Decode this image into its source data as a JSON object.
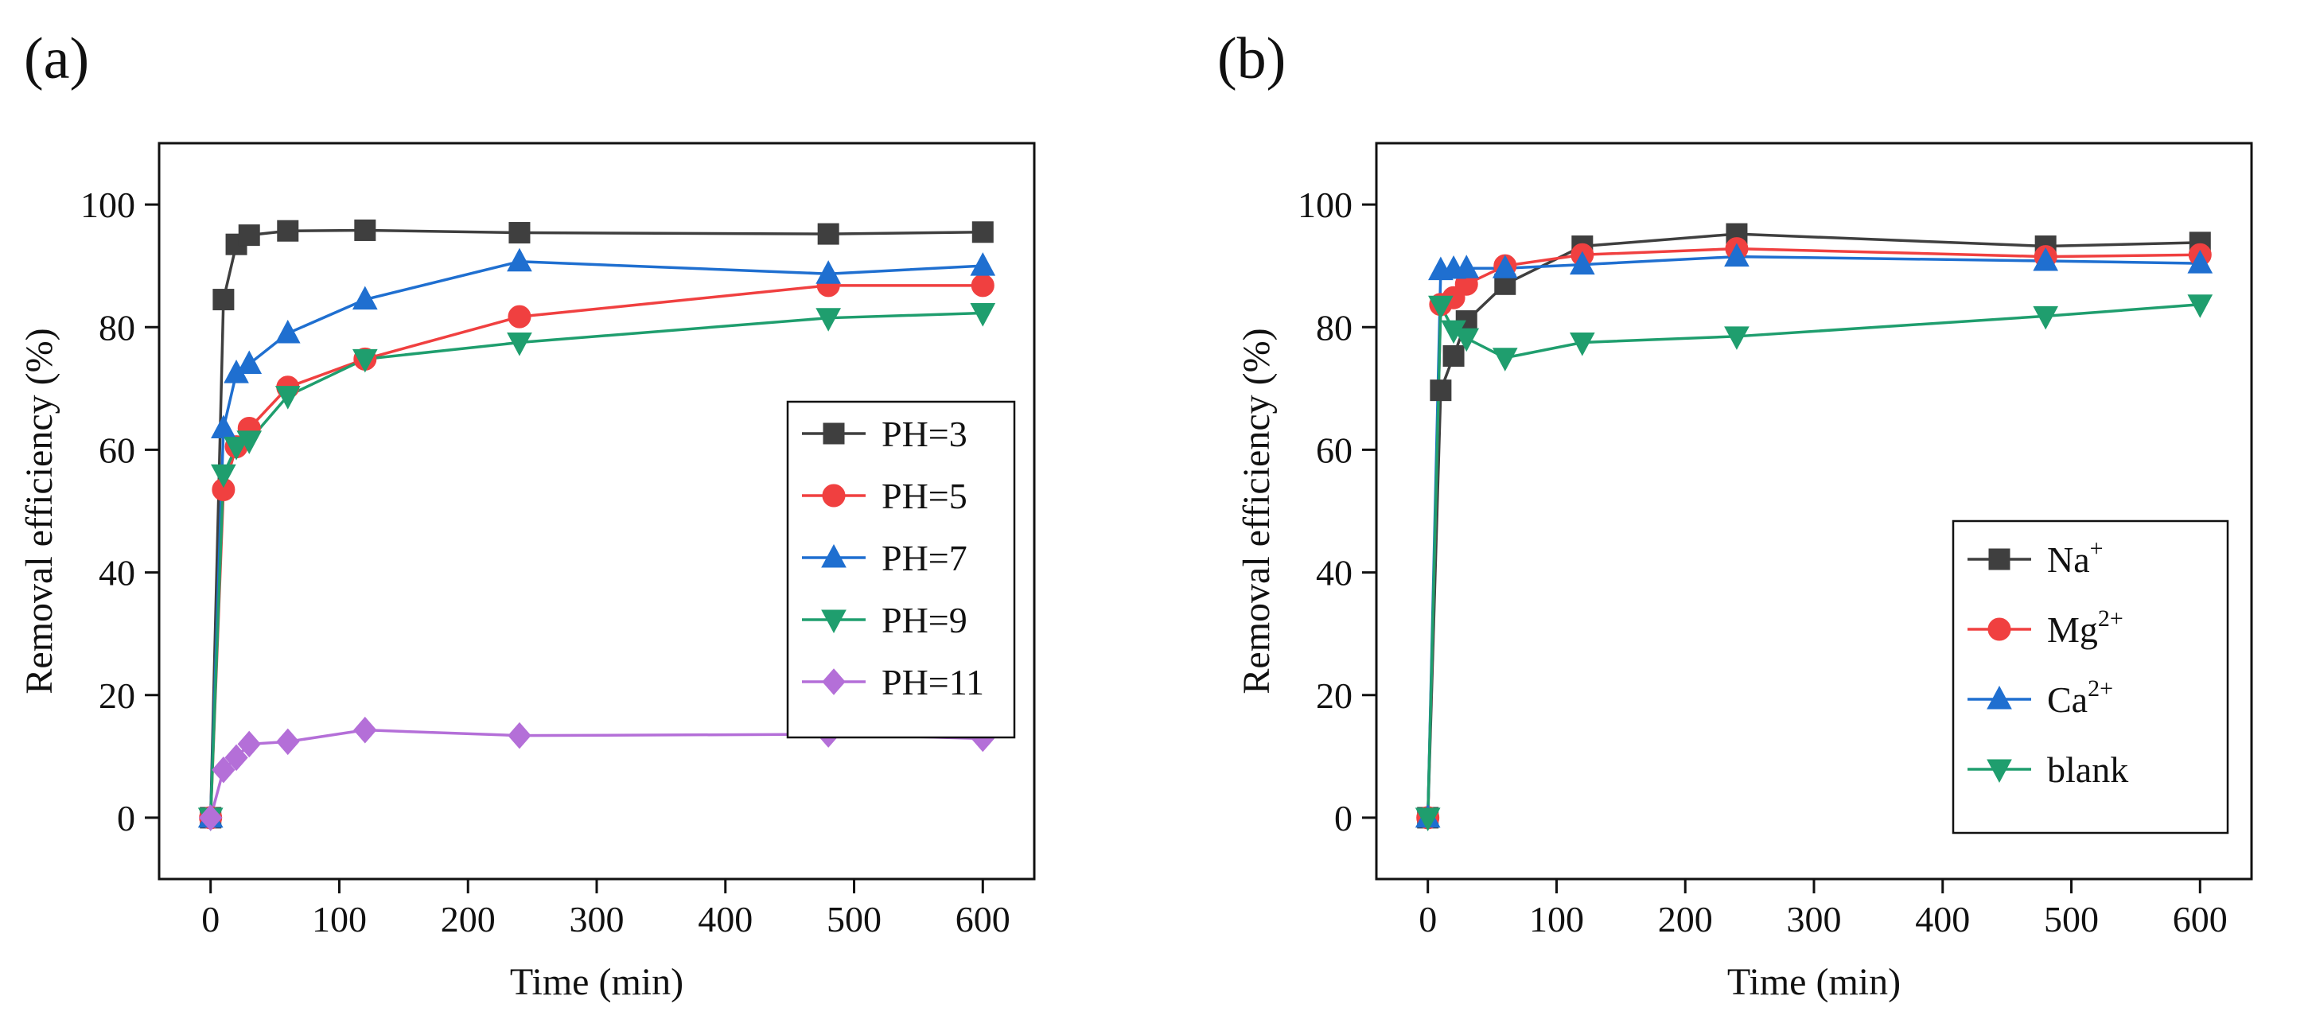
{
  "chart_data": [
    {
      "panel_label": "(a)",
      "type": "line",
      "xlabel": "Time (min)",
      "ylabel": "Removal efficiency (%)",
      "xlim": [
        -40,
        640
      ],
      "ylim": [
        -10,
        110
      ],
      "xticks": [
        0,
        100,
        200,
        300,
        400,
        500,
        600
      ],
      "xtick_labels": [
        "0",
        "100",
        "200",
        "300",
        "400",
        "500",
        "600"
      ],
      "yticks": [
        0,
        20,
        40,
        60,
        80,
        100
      ],
      "ytick_labels": [
        "0",
        "20",
        "40",
        "60",
        "80",
        "100"
      ],
      "grid": false,
      "legend_position": "center-right",
      "x": [
        0,
        10,
        20,
        30,
        60,
        120,
        240,
        480,
        600
      ],
      "series": [
        {
          "name": "PH=3",
          "label_main": "PH=3",
          "label_sup": "",
          "color": "#3f3f3f",
          "marker": "square",
          "values": [
            0,
            84.5,
            93.5,
            95,
            95.7,
            95.8,
            95.4,
            95.2,
            95.5
          ]
        },
        {
          "name": "PH=5",
          "label_main": "PH=5",
          "label_sup": "",
          "color": "#f04040",
          "marker": "circle",
          "values": [
            0,
            53.5,
            60.5,
            63.5,
            70.2,
            74.8,
            81.7,
            86.8,
            86.8
          ]
        },
        {
          "name": "PH=7",
          "label_main": "PH=7",
          "label_sup": "",
          "color": "#1f6fd0",
          "marker": "triangle-up",
          "values": [
            0,
            63.5,
            72.5,
            74,
            79,
            84.5,
            90.7,
            88.7,
            90
          ]
        },
        {
          "name": "PH=9",
          "label_main": "PH=9",
          "label_sup": "",
          "color": "#1f9e6e",
          "marker": "triangle-down",
          "values": [
            0,
            56,
            60.5,
            61.5,
            68.8,
            74.8,
            77.5,
            81.5,
            82.3
          ]
        },
        {
          "name": "PH=11",
          "label_main": "PH=11",
          "label_sup": "",
          "color": "#b46fd8",
          "marker": "diamond",
          "values": [
            0,
            7.8,
            9.8,
            12,
            12.4,
            14.3,
            13.4,
            13.6,
            12.9
          ]
        }
      ]
    },
    {
      "panel_label": "(b)",
      "type": "line",
      "xlabel": "Time (min)",
      "ylabel": "Removal efficiency (%)",
      "xlim": [
        -40,
        640
      ],
      "ylim": [
        -10,
        110
      ],
      "xticks": [
        0,
        100,
        200,
        300,
        400,
        500,
        600
      ],
      "xtick_labels": [
        "0",
        "100",
        "200",
        "300",
        "400",
        "500",
        "600"
      ],
      "yticks": [
        0,
        20,
        40,
        60,
        80,
        100
      ],
      "ytick_labels": [
        "0",
        "20",
        "40",
        "60",
        "80",
        "100"
      ],
      "grid": false,
      "legend_position": "bottom-right",
      "x": [
        0,
        10,
        20,
        30,
        60,
        120,
        240,
        480,
        600
      ],
      "series": [
        {
          "name": "Na+",
          "label_main": "Na",
          "label_sup": "+",
          "color": "#3f3f3f",
          "marker": "square",
          "values": [
            0,
            69.7,
            75.3,
            81,
            87,
            93.2,
            95.2,
            93.2,
            93.8
          ]
        },
        {
          "name": "Mg2+",
          "label_main": "Mg",
          "label_sup": "2+",
          "color": "#f04040",
          "marker": "circle",
          "values": [
            0,
            83.7,
            84.8,
            87,
            90,
            91.8,
            92.8,
            91.5,
            91.8
          ]
        },
        {
          "name": "Ca2+",
          "label_main": "Ca",
          "label_sup": "2+",
          "color": "#1f6fd0",
          "marker": "triangle-up",
          "values": [
            0,
            89.3,
            89.5,
            89.6,
            89.6,
            90.2,
            91.5,
            90.8,
            90.4
          ]
        },
        {
          "name": "blank",
          "label_main": "blank",
          "label_sup": "",
          "color": "#1f9e6e",
          "marker": "triangle-down",
          "values": [
            0,
            83.5,
            79.5,
            78.2,
            75,
            77.5,
            78.5,
            81.8,
            83.7
          ]
        }
      ]
    }
  ]
}
